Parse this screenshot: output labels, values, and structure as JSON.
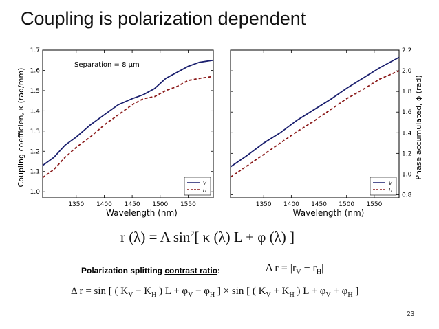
{
  "slide": {
    "title": "Coupling is polarization dependent",
    "page_number": "23"
  },
  "chart_data": [
    {
      "type": "line",
      "annotation": "Separation = 8 μm",
      "xlabel": "Wavelength (nm)",
      "ylabel": "Coupling coefficien, κ (rad/mm)",
      "xlim": [
        1290,
        1595
      ],
      "ylim": [
        0.97,
        1.7
      ],
      "xticks": [
        1350,
        1400,
        1450,
        1500,
        1550
      ],
      "yticks": [
        1.0,
        1.1,
        1.2,
        1.3,
        1.4,
        1.5,
        1.6,
        1.7
      ],
      "ytick_labels": [
        "1.0",
        "1.1",
        "1.2",
        "1.3",
        "1.4",
        "1.5",
        "1.6",
        "1.7"
      ],
      "legend_position": "lower-right",
      "grid": false,
      "x": [
        1290,
        1310,
        1330,
        1350,
        1375,
        1400,
        1425,
        1450,
        1470,
        1490,
        1510,
        1530,
        1550,
        1570,
        1595
      ],
      "series": [
        {
          "name": "V",
          "color": "#1a1f6e",
          "style": "solid",
          "values": [
            1.13,
            1.17,
            1.23,
            1.27,
            1.33,
            1.38,
            1.43,
            1.46,
            1.48,
            1.51,
            1.56,
            1.59,
            1.62,
            1.64,
            1.65
          ]
        },
        {
          "name": "H",
          "color": "#8b1a1a",
          "style": "dashed",
          "values": [
            1.07,
            1.11,
            1.17,
            1.22,
            1.27,
            1.33,
            1.38,
            1.43,
            1.46,
            1.47,
            1.5,
            1.52,
            1.55,
            1.56,
            1.57
          ]
        }
      ]
    },
    {
      "type": "line",
      "xlabel": "Wavelength (nm)",
      "ylabel": "Phase accumulated, ϕ (rad)",
      "xlim": [
        1290,
        1595
      ],
      "ylim": [
        0.77,
        2.2
      ],
      "xticks": [
        1350,
        1400,
        1450,
        1500,
        1550
      ],
      "yticks": [
        0.8,
        1.0,
        1.2,
        1.4,
        1.6,
        1.8,
        2.0,
        2.2
      ],
      "ytick_labels": [
        "0.8",
        "1.0",
        "1.2",
        "1.4",
        "1.6",
        "1.8",
        "2.0",
        "2.2"
      ],
      "y_axis_side": "right",
      "legend_position": "lower-right",
      "grid": false,
      "x": [
        1290,
        1320,
        1350,
        1380,
        1410,
        1440,
        1470,
        1500,
        1530,
        1560,
        1595
      ],
      "series": [
        {
          "name": "V",
          "color": "#1a1f6e",
          "style": "solid",
          "values": [
            1.07,
            1.18,
            1.3,
            1.4,
            1.52,
            1.62,
            1.72,
            1.83,
            1.93,
            2.03,
            2.13
          ]
        },
        {
          "name": "H",
          "color": "#8b1a1a",
          "style": "dashed",
          "values": [
            0.97,
            1.08,
            1.19,
            1.3,
            1.41,
            1.51,
            1.62,
            1.73,
            1.82,
            1.92,
            2.0
          ]
        }
      ]
    }
  ],
  "equations": {
    "main_lhs": "r (λ) = A sin",
    "main_exp": "2",
    "main_rhs": "[ κ (λ) L + φ (λ) ]",
    "contrast_prefix": "Polarization splitting ",
    "contrast_underlined": "contrast ratio",
    "contrast_suffix": ":",
    "delta_r_lhs": "Δ r = |r",
    "delta_r_sub_v": "V",
    "delta_r_mid": " − r",
    "delta_r_sub_h": "H",
    "delta_r_end": "|",
    "long_p1": "Δ r = sin [ ( K",
    "long_s1": "V",
    "long_p2": " − K",
    "long_s2": "H",
    "long_p3": " ) L + φ",
    "long_s3": "V",
    "long_p4": " − φ",
    "long_s4": "H",
    "long_p5": " ] × sin [ ( K",
    "long_s5": "V",
    "long_p6": " + K",
    "long_s6": "H",
    "long_p7": " ) L + φ",
    "long_s7": "V",
    "long_p8": " + φ",
    "long_s8": "H",
    "long_p9": " ]"
  }
}
